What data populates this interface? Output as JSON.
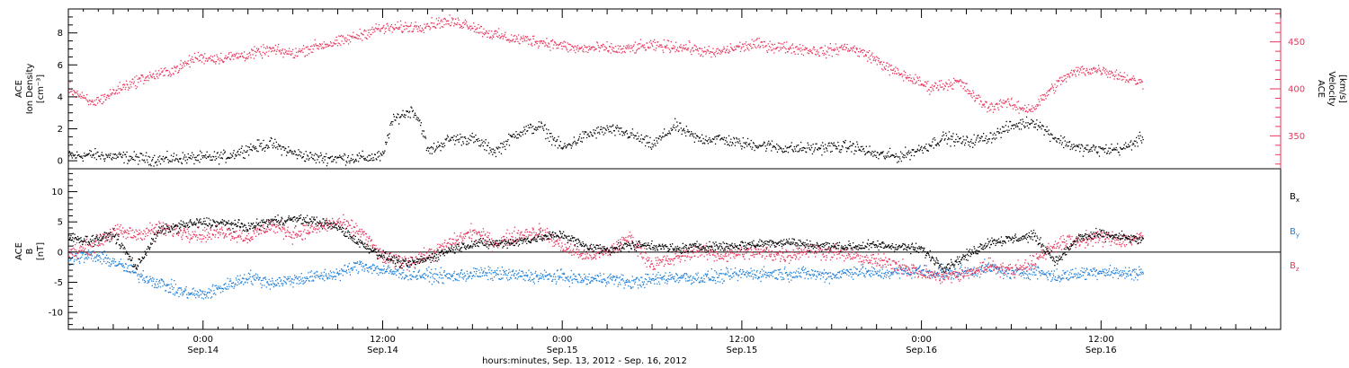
{
  "colors": {
    "black": "#000000",
    "velocity": "#e8365d",
    "by": "#1f7fd8",
    "bz": "#e8365d"
  },
  "xaxis": {
    "title": "hours:minutes, Sep. 13, 2012 - Sep. 16, 2012",
    "ticks": [
      {
        "hour": 24,
        "time": "0:00",
        "date": "Sep.14"
      },
      {
        "hour": 36,
        "time": "12:00",
        "date": "Sep.14"
      },
      {
        "hour": 48,
        "time": "0:00",
        "date": "Sep.15"
      },
      {
        "hour": 60,
        "time": "12:00",
        "date": "Sep.15"
      },
      {
        "hour": 72,
        "time": "0:00",
        "date": "Sep.16"
      },
      {
        "hour": 84,
        "time": "12:00",
        "date": "Sep.16"
      }
    ],
    "range_hours": [
      15.0,
      96.0
    ]
  },
  "chart_data": [
    {
      "type": "scatter",
      "panel": "top",
      "left_ylabel": [
        "ACE",
        "Ion Density",
        "[cm⁻³]"
      ],
      "right_ylabel": [
        "ACE",
        "Velocity",
        "[km/s]"
      ],
      "left_ylim": [
        -0.5,
        9.5
      ],
      "left_ticks": [
        "0",
        "2",
        "4",
        "6",
        "8"
      ],
      "left_tick_values": [
        0,
        2,
        4,
        6,
        8
      ],
      "right_ylim": [
        315,
        485
      ],
      "right_ticks": [
        "350",
        "400",
        "450"
      ],
      "right_tick_values": [
        350,
        400,
        450
      ],
      "series": [
        {
          "key": "density",
          "axis": "left",
          "color": "#000000",
          "x": [
            15.0,
            16.5,
            18,
            19.5,
            21,
            22.5,
            24,
            25.5,
            27,
            28.5,
            30,
            31.5,
            33,
            34.5,
            36,
            36.5,
            37,
            37.5,
            38,
            38.5,
            39,
            40.5,
            42,
            43.5,
            45,
            46.5,
            48,
            49.5,
            51,
            52.5,
            54,
            55.5,
            57,
            58.5,
            60,
            61.5,
            63,
            64.5,
            66,
            67.5,
            69,
            70.5,
            72,
            73.5,
            75,
            76.5,
            78,
            79.5,
            81,
            82.5,
            84,
            85.5,
            86.8
          ],
          "y": [
            0.3,
            0.4,
            0.3,
            0.2,
            0.1,
            0.2,
            0.2,
            0.3,
            0.8,
            1.1,
            0.5,
            0.2,
            0.2,
            0.2,
            0.3,
            2.3,
            2.8,
            3.0,
            3.2,
            2.4,
            0.6,
            1.4,
            1.4,
            0.6,
            1.8,
            2.2,
            0.8,
            1.6,
            2.0,
            1.7,
            1.0,
            2.2,
            1.4,
            1.4,
            1.1,
            1.0,
            0.8,
            0.8,
            0.9,
            0.9,
            0.4,
            0.3,
            0.8,
            1.5,
            1.2,
            1.5,
            2.2,
            2.5,
            1.4,
            0.8,
            0.7,
            0.8,
            1.5
          ]
        },
        {
          "key": "velocity",
          "axis": "right",
          "color": "#e8365d",
          "x": [
            15.0,
            15.8,
            16.5,
            17.5,
            18.5,
            20,
            21.5,
            22.5,
            23.5,
            25,
            27,
            28.5,
            30,
            31.5,
            33,
            34.5,
            35.5,
            36.5,
            37.5,
            38.5,
            40,
            41.5,
            43,
            44.5,
            46,
            47.5,
            49,
            50.5,
            52,
            53.5,
            55,
            56.5,
            58,
            59.5,
            61,
            62.5,
            64,
            65.5,
            67,
            68.5,
            70,
            71.5,
            72.5,
            73.5,
            74.5,
            75.5,
            76.5,
            77.5,
            78.5,
            79.5,
            80.5,
            81.5,
            82.5,
            84,
            85.5,
            86.8
          ],
          "y": [
            402,
            392,
            385,
            392,
            402,
            412,
            418,
            424,
            434,
            433,
            437,
            442,
            438,
            446,
            450,
            458,
            464,
            465,
            466,
            467,
            472,
            470,
            460,
            454,
            452,
            448,
            443,
            444,
            442,
            446,
            446,
            444,
            438,
            444,
            448,
            445,
            443,
            440,
            445,
            436,
            420,
            410,
            402,
            405,
            408,
            392,
            380,
            387,
            380,
            380,
            398,
            412,
            420,
            421,
            413,
            406
          ]
        }
      ]
    },
    {
      "type": "scatter",
      "panel": "bottom",
      "ylabel": [
        "ACE",
        "B",
        "[nT]"
      ],
      "ylim": [
        -12.8,
        13.8
      ],
      "yticks": [
        "10",
        "5",
        "0",
        "-5",
        "-10"
      ],
      "ytick_values": [
        10,
        5,
        0,
        -5,
        -10
      ],
      "zero_line": true,
      "legend": [
        "Bx",
        "By",
        "Bz"
      ],
      "series": [
        {
          "key": "bx",
          "name": "Bx",
          "color": "#000000",
          "x": [
            15.0,
            16.5,
            18,
            19.5,
            21,
            22.5,
            24,
            25.5,
            27,
            28.5,
            30,
            31.5,
            33,
            34.5,
            36,
            37.5,
            39,
            40.5,
            42,
            43.5,
            45,
            46.5,
            48,
            49.5,
            51,
            52.5,
            54,
            55.5,
            57,
            58.5,
            60,
            61.5,
            63,
            64.5,
            66,
            67.5,
            69,
            70.5,
            72,
            73.5,
            75,
            76.5,
            78,
            79.5,
            81,
            82.5,
            84,
            85.5,
            86.8
          ],
          "y": [
            2.5,
            2.0,
            3.0,
            -2.5,
            3.5,
            4.5,
            5.0,
            4.8,
            4.2,
            5.2,
            5.5,
            5.2,
            4.2,
            1.5,
            -0.5,
            -2.0,
            -1.0,
            0.5,
            1.5,
            1.5,
            1.8,
            2.5,
            3.0,
            1.0,
            0.5,
            1.2,
            1.2,
            0.5,
            1.0,
            1.0,
            1.2,
            1.5,
            1.8,
            1.2,
            1.0,
            1.0,
            1.2,
            1.0,
            0.5,
            -2.5,
            -0.5,
            1.8,
            2.2,
            2.8,
            -1.5,
            2.5,
            3.0,
            2.5,
            2.0
          ]
        },
        {
          "key": "by",
          "name": "By",
          "color": "#1f7fd8",
          "x": [
            15.0,
            16.5,
            18,
            19.5,
            21,
            22.5,
            24,
            25.5,
            27,
            28.5,
            30,
            31.5,
            33,
            34.5,
            36,
            37.5,
            39,
            40.5,
            42,
            43.5,
            45,
            46.5,
            48,
            49.5,
            51,
            52.5,
            54,
            55.5,
            57,
            58.5,
            60,
            61.5,
            63,
            64.5,
            66,
            67.5,
            69,
            70.5,
            72,
            73.5,
            75,
            76.5,
            78,
            79.5,
            81,
            82.5,
            84,
            85.5,
            86.8
          ],
          "y": [
            -1.0,
            -0.5,
            -1.5,
            -3.5,
            -5.0,
            -6.5,
            -7.0,
            -5.5,
            -4.0,
            -5.0,
            -4.5,
            -4.0,
            -3.5,
            -2.0,
            -3.0,
            -3.5,
            -3.8,
            -4.0,
            -3.5,
            -3.5,
            -3.8,
            -4.0,
            -4.0,
            -4.5,
            -4.2,
            -5.0,
            -4.5,
            -4.0,
            -4.2,
            -4.0,
            -3.5,
            -3.5,
            -3.5,
            -3.5,
            -3.8,
            -3.0,
            -3.5,
            -3.2,
            -3.0,
            -3.5,
            -3.2,
            -2.5,
            -3.5,
            -3.0,
            -4.0,
            -3.5,
            -3.0,
            -3.5,
            -3.2
          ]
        },
        {
          "key": "bz",
          "name": "Bz",
          "color": "#e8365d",
          "x": [
            15.0,
            16.5,
            18,
            19.5,
            21,
            22.5,
            24,
            25.5,
            27,
            28.5,
            30,
            31.5,
            33,
            34.5,
            36,
            37.5,
            39,
            40.5,
            42,
            43.5,
            45,
            46.5,
            48,
            49.5,
            51,
            52.5,
            54,
            55.5,
            57,
            58.5,
            60,
            61.5,
            63,
            64.5,
            66,
            67.5,
            69,
            70.5,
            72,
            73.5,
            75,
            76.5,
            78,
            79.5,
            81,
            82.5,
            84,
            85.5,
            86.8
          ],
          "y": [
            0.0,
            1.0,
            3.5,
            3.0,
            4.0,
            3.5,
            3.0,
            3.5,
            2.5,
            4.5,
            3.0,
            4.0,
            5.0,
            3.5,
            -1.0,
            -1.5,
            -0.5,
            1.5,
            3.5,
            1.5,
            3.0,
            3.5,
            1.0,
            -0.5,
            0.0,
            2.5,
            -2.0,
            -1.0,
            0.5,
            -0.5,
            0.0,
            0.0,
            -0.5,
            0.5,
            0.0,
            -0.5,
            -1.5,
            -2.0,
            -3.5,
            -4.0,
            -3.5,
            -2.0,
            -3.0,
            -1.5,
            1.5,
            2.0,
            2.5,
            2.0,
            2.5
          ]
        }
      ]
    }
  ]
}
